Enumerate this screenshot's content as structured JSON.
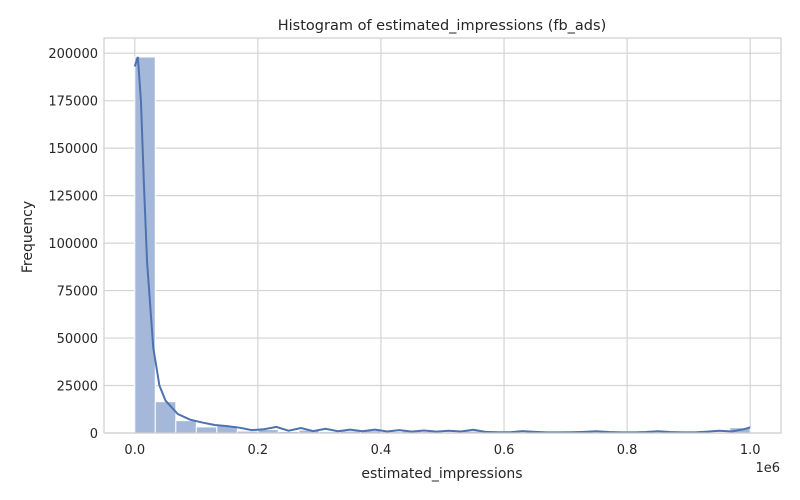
{
  "chart_data": {
    "type": "bar",
    "title": "Histogram of estimated_impressions (fb_ads)",
    "xlabel": "estimated_impressions",
    "ylabel": "Frequency",
    "x_scale_note": "1e6",
    "xlim": [
      -0.05,
      1.05
    ],
    "ylim": [
      0,
      208000
    ],
    "x_ticks": [
      0.0,
      0.2,
      0.4,
      0.6,
      0.8,
      1.0
    ],
    "x_tick_labels": [
      "0.0",
      "0.2",
      "0.4",
      "0.6",
      "0.8",
      "1.0"
    ],
    "y_ticks": [
      0,
      25000,
      50000,
      75000,
      100000,
      125000,
      150000,
      175000,
      200000
    ],
    "y_tick_labels": [
      "0",
      "25000",
      "50000",
      "75000",
      "100000",
      "125000",
      "150000",
      "175000",
      "200000"
    ],
    "grid": true,
    "bin_width": 0.0333,
    "bins": [
      {
        "x0": 0.0,
        "x1": 0.0333,
        "value": 198000
      },
      {
        "x0": 0.0333,
        "x1": 0.0667,
        "value": 16500
      },
      {
        "x0": 0.0667,
        "x1": 0.1,
        "value": 6500
      },
      {
        "x0": 0.1,
        "x1": 0.1333,
        "value": 3200
      },
      {
        "x0": 0.1333,
        "x1": 0.1667,
        "value": 3800
      },
      {
        "x0": 0.1667,
        "x1": 0.2,
        "value": 1000
      },
      {
        "x0": 0.2,
        "x1": 0.2333,
        "value": 1800
      },
      {
        "x0": 0.2333,
        "x1": 0.2667,
        "value": 800
      },
      {
        "x0": 0.2667,
        "x1": 0.3,
        "value": 1500
      },
      {
        "x0": 0.3,
        "x1": 0.3333,
        "value": 700
      },
      {
        "x0": 0.3333,
        "x1": 0.3667,
        "value": 1000
      },
      {
        "x0": 0.3667,
        "x1": 0.4,
        "value": 1200
      },
      {
        "x0": 0.4,
        "x1": 0.4333,
        "value": 700
      },
      {
        "x0": 0.4333,
        "x1": 0.4667,
        "value": 900
      },
      {
        "x0": 0.4667,
        "x1": 0.5,
        "value": 800
      },
      {
        "x0": 0.5,
        "x1": 0.5333,
        "value": 600
      },
      {
        "x0": 0.5333,
        "x1": 0.5667,
        "value": 1000
      },
      {
        "x0": 0.5667,
        "x1": 0.6,
        "value": 300
      },
      {
        "x0": 0.6,
        "x1": 0.6333,
        "value": 300
      },
      {
        "x0": 0.6333,
        "x1": 0.6667,
        "value": 700
      },
      {
        "x0": 0.6667,
        "x1": 0.7,
        "value": 200
      },
      {
        "x0": 0.7,
        "x1": 0.7333,
        "value": 200
      },
      {
        "x0": 0.7333,
        "x1": 0.7667,
        "value": 500
      },
      {
        "x0": 0.7667,
        "x1": 0.8,
        "value": 200
      },
      {
        "x0": 0.8,
        "x1": 0.8333,
        "value": 200
      },
      {
        "x0": 0.8333,
        "x1": 0.8667,
        "value": 300
      },
      {
        "x0": 0.8667,
        "x1": 0.9,
        "value": 200
      },
      {
        "x0": 0.9,
        "x1": 0.9333,
        "value": 200
      },
      {
        "x0": 0.9333,
        "x1": 0.9667,
        "value": 500
      },
      {
        "x0": 0.9667,
        "x1": 1.0,
        "value": 2800
      }
    ],
    "kde": {
      "x": [
        0.0,
        0.005,
        0.01,
        0.015,
        0.02,
        0.03,
        0.04,
        0.05,
        0.07,
        0.09,
        0.11,
        0.13,
        0.15,
        0.17,
        0.19,
        0.21,
        0.23,
        0.25,
        0.27,
        0.29,
        0.31,
        0.33,
        0.35,
        0.37,
        0.39,
        0.41,
        0.43,
        0.45,
        0.47,
        0.49,
        0.51,
        0.53,
        0.55,
        0.57,
        0.59,
        0.61,
        0.63,
        0.65,
        0.67,
        0.69,
        0.71,
        0.73,
        0.75,
        0.77,
        0.79,
        0.81,
        0.83,
        0.85,
        0.87,
        0.89,
        0.91,
        0.93,
        0.95,
        0.97,
        0.99,
        1.0
      ],
      "y": [
        193000,
        198000,
        175000,
        130000,
        90000,
        45000,
        25000,
        17000,
        10000,
        7000,
        5500,
        4200,
        3600,
        2800,
        1500,
        2000,
        3200,
        1200,
        2600,
        1000,
        2200,
        900,
        1800,
        900,
        1800,
        800,
        1500,
        700,
        1300,
        700,
        1200,
        800,
        1700,
        600,
        400,
        400,
        1000,
        600,
        300,
        300,
        400,
        600,
        900,
        500,
        300,
        300,
        500,
        900,
        500,
        300,
        300,
        700,
        1200,
        800,
        2000,
        3000
      ]
    },
    "colors": {
      "bar": "#a5b8d9",
      "kde": "#4c72b0",
      "grid": "#d4d4d4"
    }
  }
}
